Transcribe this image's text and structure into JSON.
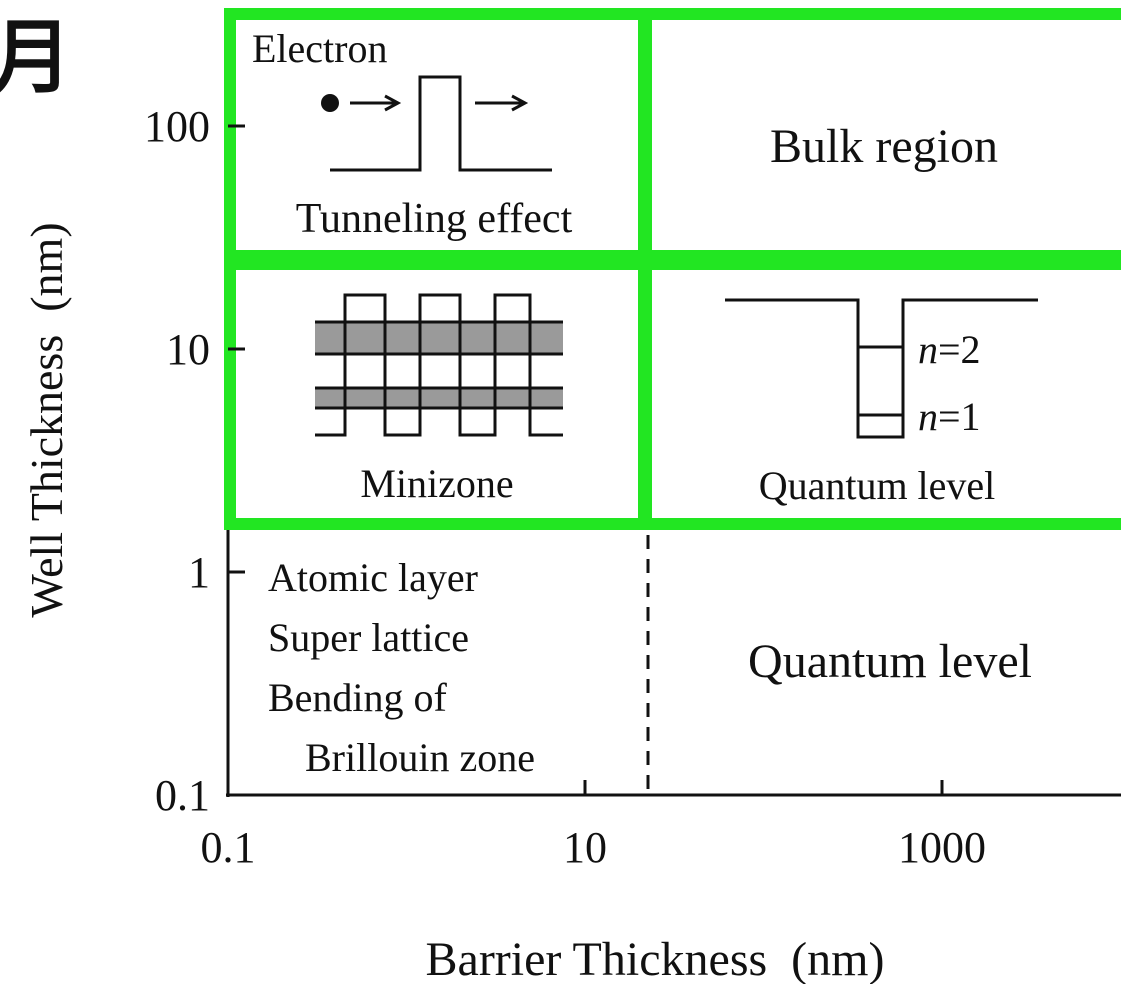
{
  "corner_fragment": "月",
  "axes": {
    "x_label": "Barrier Thickness  (nm)",
    "y_label": "Well Thickness  (nm)",
    "x_ticks": [
      0.1,
      10,
      1000
    ],
    "y_ticks": [
      0.1,
      1,
      10,
      100
    ]
  },
  "regions": {
    "tunneling": {
      "electron": "Electron",
      "label": "Tunneling effect"
    },
    "bulk": {
      "label": "Bulk region"
    },
    "minizone": {
      "label": "Minizone"
    },
    "quantum_well": {
      "level2": {
        "italic": "n",
        "rest": "=2"
      },
      "level1": {
        "italic": "n",
        "rest": "=1"
      },
      "label": "Quantum level"
    },
    "small": {
      "lines": [
        "Atomic layer",
        "Super lattice",
        "Bending of",
        "Brillouin zone"
      ]
    },
    "quantum_lower": {
      "label": "Quantum level"
    }
  }
}
